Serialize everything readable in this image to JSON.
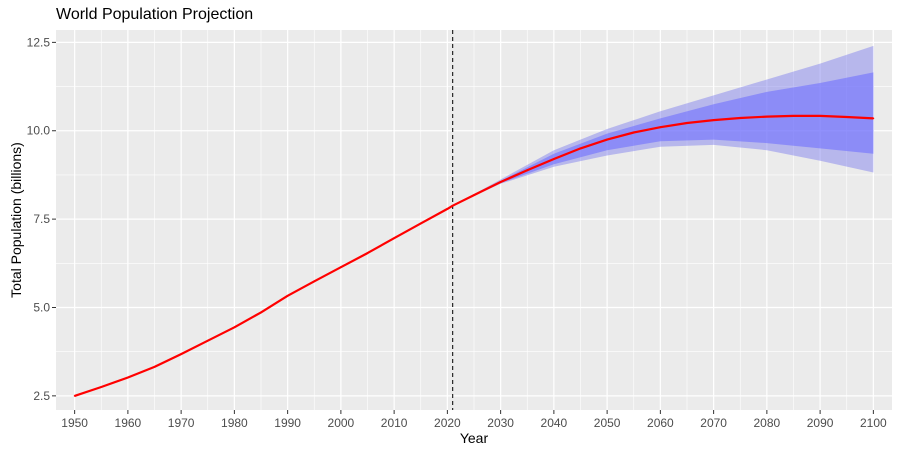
{
  "chart_data": {
    "type": "line",
    "title": "World Population Projection",
    "xlabel": "Year",
    "ylabel": "Total Population (billions)",
    "xlim": [
      1946.5,
      2103.5
    ],
    "ylim": [
      2.1,
      12.85
    ],
    "x_ticks": [
      1950,
      1960,
      1970,
      1980,
      1990,
      2000,
      2010,
      2020,
      2030,
      2040,
      2050,
      2060,
      2070,
      2080,
      2090,
      2100
    ],
    "y_ticks": [
      2.5,
      5.0,
      7.5,
      10.0,
      12.5
    ],
    "y_tick_labels": [
      "2.5",
      "5.0",
      "7.5",
      "10.0",
      "12.5"
    ],
    "grid": true,
    "background": "#ebebeb",
    "reference_line": {
      "x": 2021,
      "style": "dashed",
      "color": "#000000"
    },
    "series": [
      {
        "kind": "line",
        "color": "#ff0000",
        "x": [
          1950,
          1955,
          1960,
          1965,
          1970,
          1975,
          1980,
          1985,
          1990,
          1995,
          2000,
          2005,
          2010,
          2015,
          2020,
          2021,
          2025,
          2030,
          2035,
          2040,
          2045,
          2050,
          2055,
          2060,
          2065,
          2070,
          2075,
          2080,
          2085,
          2090,
          2095,
          2100
        ],
        "y": [
          2.5,
          2.75,
          3.02,
          3.32,
          3.68,
          4.06,
          4.44,
          4.86,
          5.33,
          5.74,
          6.14,
          6.54,
          6.96,
          7.38,
          7.79,
          7.88,
          8.18,
          8.55,
          8.88,
          9.2,
          9.5,
          9.75,
          9.95,
          10.1,
          10.22,
          10.3,
          10.36,
          10.4,
          10.42,
          10.42,
          10.39,
          10.35
        ]
      },
      {
        "kind": "band",
        "label_kind": "95% interval",
        "color": "#7777ee",
        "opacity": 0.45,
        "x": [
          2021,
          2030,
          2040,
          2050,
          2060,
          2070,
          2080,
          2090,
          2100
        ],
        "lower": [
          7.88,
          8.5,
          8.98,
          9.3,
          9.55,
          9.6,
          9.45,
          9.15,
          8.82
        ],
        "upper": [
          7.88,
          8.62,
          9.45,
          10.05,
          10.55,
          11.0,
          11.45,
          11.9,
          12.4
        ]
      },
      {
        "kind": "band",
        "label_kind": "80% interval",
        "color": "#6f6fff",
        "opacity": 0.6,
        "x": [
          2021,
          2030,
          2040,
          2050,
          2060,
          2070,
          2080,
          2090,
          2100
        ],
        "lower": [
          7.88,
          8.52,
          9.05,
          9.45,
          9.7,
          9.75,
          9.65,
          9.5,
          9.35
        ],
        "upper": [
          7.88,
          8.58,
          9.35,
          9.92,
          10.35,
          10.75,
          11.1,
          11.35,
          11.65
        ]
      }
    ]
  }
}
